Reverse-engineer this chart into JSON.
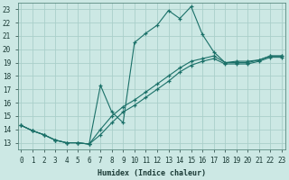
{
  "xlabel": "Humidex (Indice chaleur)",
  "xlim": [
    -0.3,
    23.3
  ],
  "ylim": [
    12.5,
    23.5
  ],
  "xticks": [
    0,
    1,
    2,
    3,
    4,
    5,
    6,
    7,
    8,
    9,
    10,
    11,
    12,
    13,
    14,
    15,
    16,
    17,
    18,
    19,
    20,
    21,
    22,
    23
  ],
  "yticks": [
    13,
    14,
    15,
    16,
    17,
    18,
    19,
    20,
    21,
    22,
    23
  ],
  "bg_color": "#cce8e4",
  "line_color": "#1a7068",
  "grid_color": "#aacfca",
  "line1_x": [
    0,
    1,
    2,
    3,
    4,
    5,
    6,
    7,
    8,
    9,
    10,
    11,
    12,
    13,
    14,
    15,
    16,
    17,
    18,
    19,
    20,
    21,
    22,
    23
  ],
  "line1_y": [
    14.3,
    13.9,
    13.6,
    13.2,
    13.0,
    13.0,
    12.9,
    17.3,
    15.3,
    14.5,
    20.5,
    21.2,
    21.8,
    22.9,
    22.3,
    23.2,
    21.1,
    19.8,
    19.0,
    19.1,
    19.1,
    19.2,
    19.5,
    19.5
  ],
  "line2_x": [
    0,
    1,
    2,
    3,
    4,
    5,
    6,
    7,
    8,
    9,
    10,
    11,
    12,
    13,
    14,
    15,
    16,
    17,
    18,
    19,
    20,
    21,
    22,
    23
  ],
  "line2_y": [
    14.3,
    13.9,
    13.6,
    13.2,
    13.0,
    13.0,
    12.9,
    13.6,
    14.5,
    15.3,
    15.8,
    16.4,
    17.0,
    17.6,
    18.3,
    18.8,
    19.1,
    19.3,
    18.9,
    18.9,
    18.9,
    19.1,
    19.4,
    19.4
  ],
  "line3_x": [
    0,
    1,
    2,
    3,
    4,
    5,
    6,
    7,
    8,
    9,
    10,
    11,
    12,
    13,
    14,
    15,
    16,
    17,
    18,
    19,
    20,
    21,
    22,
    23
  ],
  "line3_y": [
    14.3,
    13.9,
    13.6,
    13.2,
    13.0,
    13.0,
    12.9,
    14.0,
    15.0,
    15.7,
    16.2,
    16.8,
    17.4,
    18.0,
    18.6,
    19.1,
    19.3,
    19.5,
    19.0,
    19.0,
    19.0,
    19.2,
    19.5,
    19.5
  ]
}
